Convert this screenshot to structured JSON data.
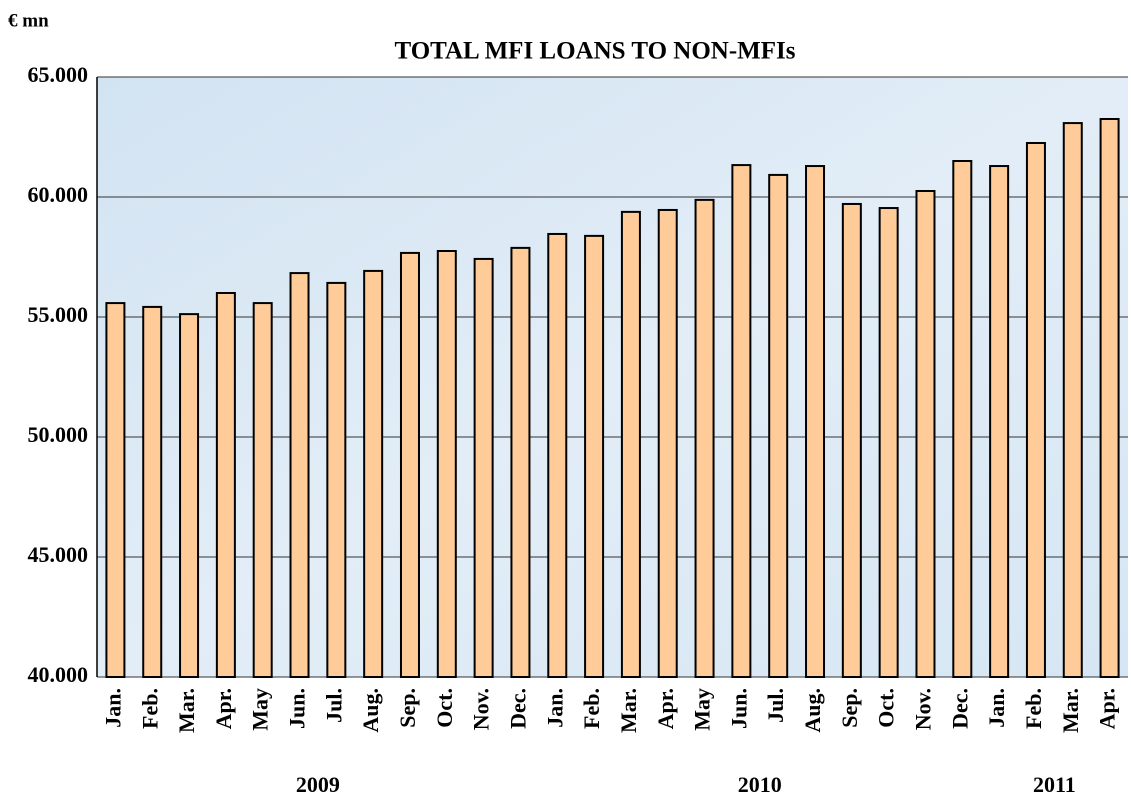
{
  "chart_data": {
    "type": "bar",
    "title": "TOTAL MFI LOANS TO NON-MFIs",
    "unit_label": "€ mn",
    "categories": [
      "Jan.",
      "Feb.",
      "Mar.",
      "Apr.",
      "May",
      "Jun.",
      "Jul.",
      "Aug.",
      "Sep.",
      "Oct.",
      "Nov.",
      "Dec.",
      "Jan.",
      "Feb.",
      "Mar.",
      "Apr.",
      "May",
      "Jun.",
      "Jul.",
      "Aug.",
      "Sep.",
      "Oct.",
      "Nov.",
      "Dec.",
      "Jan.",
      "Feb.",
      "Mar.",
      "Apr."
    ],
    "values": [
      55580,
      55420,
      55120,
      56000,
      55580,
      56830,
      56420,
      56920,
      57670,
      57750,
      57420,
      57880,
      58460,
      58380,
      59380,
      59460,
      59880,
      61330,
      60920,
      61290,
      59710,
      59540,
      60250,
      61500,
      61290,
      62250,
      63080,
      63250
    ],
    "groups": [
      {
        "label": "2009",
        "count": 12
      },
      {
        "label": "2010",
        "count": 12
      },
      {
        "label": "2011",
        "count": 4
      }
    ],
    "color": "#ffcc99",
    "ylim": [
      40000,
      65000
    ],
    "yticks": [
      {
        "value": 40000,
        "label": "40.000"
      },
      {
        "value": 45000,
        "label": "45.000"
      },
      {
        "value": 50000,
        "label": "50.000"
      },
      {
        "value": 55000,
        "label": "55.000"
      },
      {
        "value": 60000,
        "label": "60.000"
      },
      {
        "value": 65000,
        "label": "65.000"
      }
    ],
    "grid": true
  }
}
